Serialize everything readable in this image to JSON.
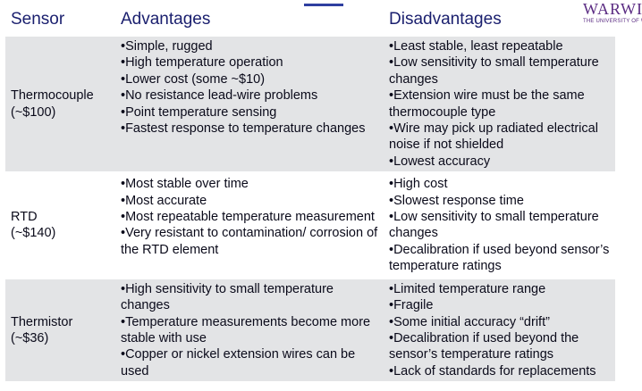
{
  "header": {
    "sensor": "Sensor",
    "advantages": "Advantages",
    "disadvantages": "Disadvantages"
  },
  "logo": {
    "main": "WARWICK",
    "sub": "THE UNIVERSITY OF WARWICK"
  },
  "rows": [
    {
      "name": "Thermocouple",
      "cost": "(~$100)",
      "advantages": [
        "•Simple, rugged",
        "•High temperature operation",
        "•Lower cost (some ~$10)",
        "•No resistance lead-wire problems",
        "•Point temperature sensing",
        "•Fastest response to temperature changes"
      ],
      "disadvantages": [
        "•Least stable, least repeatable",
        "•Low sensitivity to small temperature changes",
        "•Extension wire must be the same thermocouple type",
        "•Wire may pick up radiated electrical noise if not shielded",
        "•Lowest accuracy"
      ]
    },
    {
      "name": "RTD",
      "cost": "(~$140)",
      "advantages": [
        "•Most stable over time",
        "•Most accurate",
        "•Most repeatable temperature measurement",
        "•Very resistant to contamination/ corrosion of the RTD element"
      ],
      "disadvantages": [
        "•High cost",
        "•Slowest response time",
        "•Low sensitivity to small temperature changes",
        "•Decalibration if used beyond sensor’s temperature ratings"
      ]
    },
    {
      "name": "Thermistor",
      "cost": "(~$36)",
      "advantages": [
        "•High sensitivity to small temperature changes",
        "•Temperature measurements become more stable with use",
        "•Copper or nickel extension wires can be used"
      ],
      "disadvantages": [
        "•Limited temperature range",
        "•Fragile",
        "•Some initial accuracy “drift”",
        "•Decalibration if used beyond the sensor’s temperature ratings",
        "•Lack of standards for replacements"
      ]
    }
  ]
}
